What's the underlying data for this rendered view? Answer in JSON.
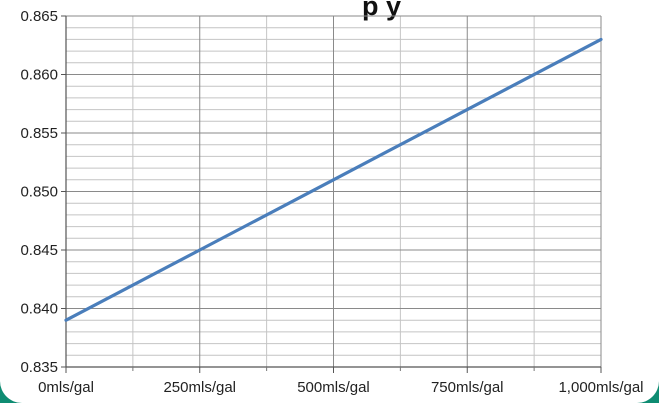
{
  "chart_data": {
    "type": "line",
    "title_fragment": "p                  y",
    "xlabel": "",
    "ylabel": "",
    "x": [
      0,
      250,
      500,
      750,
      1000
    ],
    "x_tick_labels": [
      "0mls/gal",
      "250mls/gal",
      "500mls/gal",
      "750mls/gal",
      "1,000mls/gal"
    ],
    "y_ticks": [
      0.835,
      0.84,
      0.845,
      0.85,
      0.855,
      0.86,
      0.865
    ],
    "y_tick_labels": [
      "0.835",
      "0.840",
      "0.845",
      "0.850",
      "0.855",
      "0.860",
      "0.865"
    ],
    "ylim": [
      0.835,
      0.865
    ],
    "grid": true,
    "series": [
      {
        "values": [
          0.839,
          0.845,
          0.851,
          0.857,
          0.863
        ],
        "color": "#4a7ebb"
      }
    ]
  },
  "colors": {
    "background_frame": "#0e8c72",
    "line": "#4a7ebb",
    "grid_major": "#8a8a8a",
    "grid_minor": "#c4c4c4"
  }
}
